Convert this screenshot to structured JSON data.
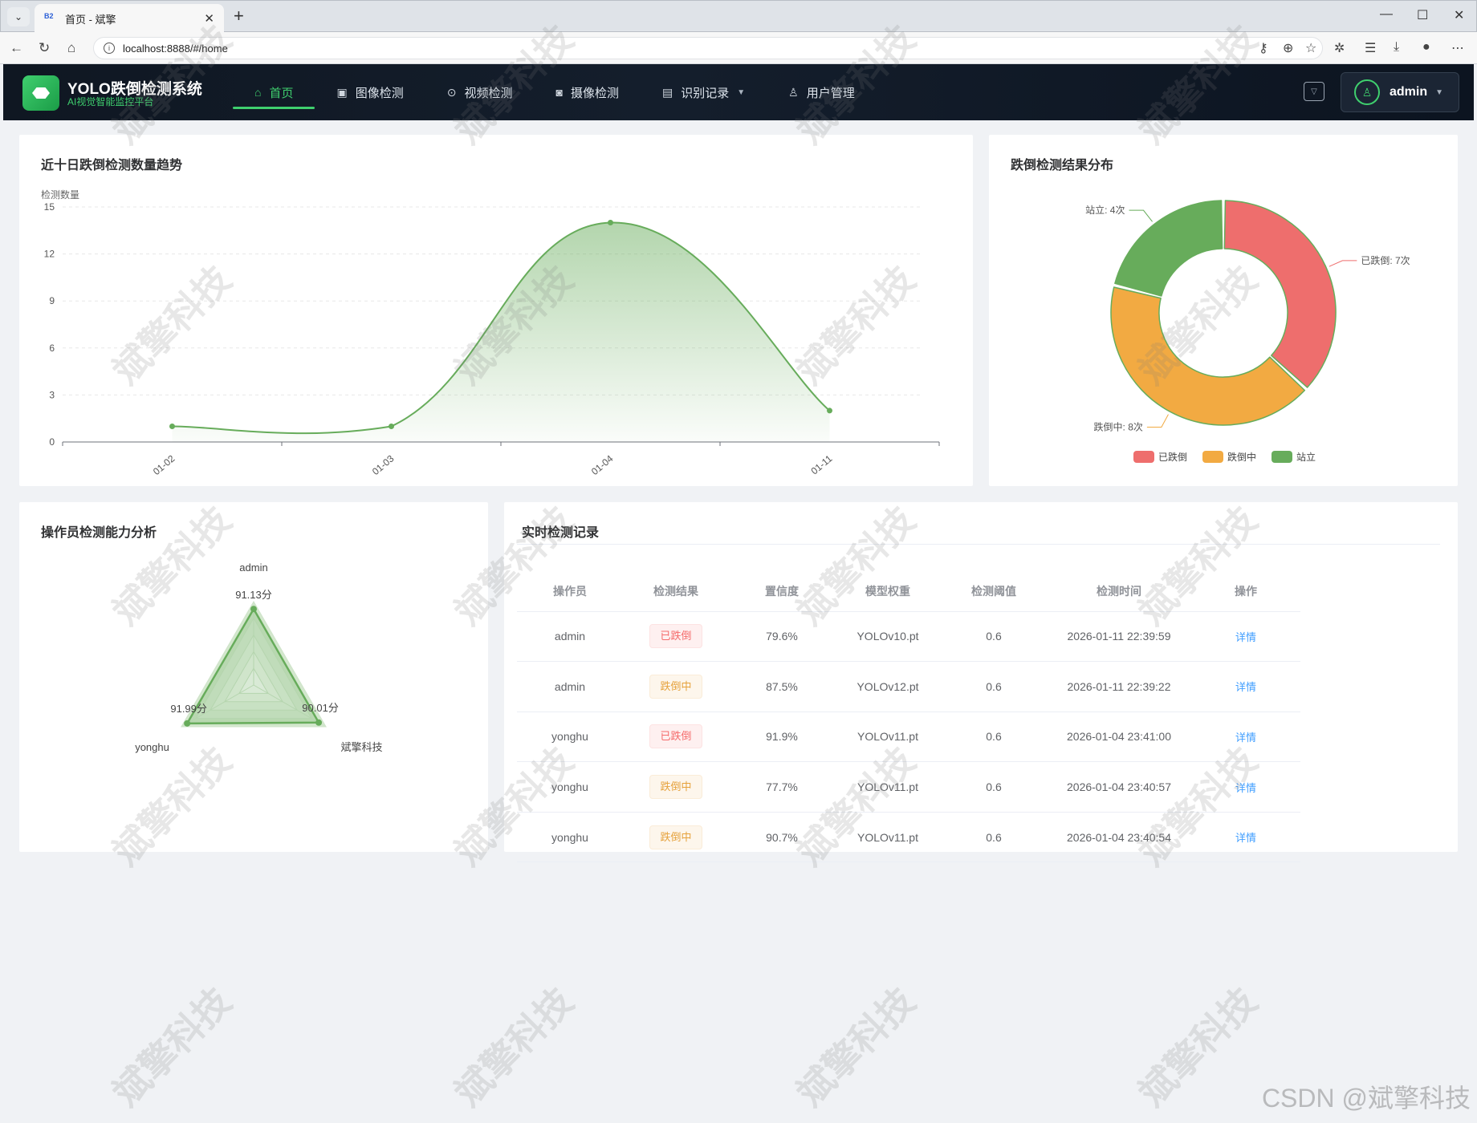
{
  "browser": {
    "tab_title": "首页 - 斌擎",
    "favicon_text": "B2",
    "url": "localhost:8888/#/home"
  },
  "app": {
    "title": "YOLO跌倒检测系统",
    "subtitle": "AI视觉智能监控平台",
    "accent": "#3fcf6e",
    "nav": [
      {
        "label": "首页",
        "icon": "home-icon",
        "active": true
      },
      {
        "label": "图像检测",
        "icon": "image-icon"
      },
      {
        "label": "视频检测",
        "icon": "play-icon"
      },
      {
        "label": "摄像检测",
        "icon": "camera-icon"
      },
      {
        "label": "识别记录",
        "icon": "document-icon",
        "has_dropdown": true
      },
      {
        "label": "用户管理",
        "icon": "user-icon"
      }
    ],
    "user": "admin"
  },
  "trend": {
    "title": "近十日跌倒检测数量趋势",
    "ylabel": "检测数量"
  },
  "pie": {
    "title": "跌倒检测结果分布"
  },
  "radar": {
    "title": "操作员检测能力分析"
  },
  "records": {
    "title": "实时检测记录",
    "columns": [
      "操作员",
      "检测结果",
      "置信度",
      "模型权重",
      "检测阈值",
      "检测时间",
      "操作"
    ],
    "rows": [
      {
        "operator": "admin",
        "result": "已跌倒",
        "kind": "fallen",
        "confidence": "79.6%",
        "weights": "YOLOv10.pt",
        "threshold": "0.6",
        "time": "2026-01-11 22:39:59",
        "action": "详情"
      },
      {
        "operator": "admin",
        "result": "跌倒中",
        "kind": "falling",
        "confidence": "87.5%",
        "weights": "YOLOv12.pt",
        "threshold": "0.6",
        "time": "2026-01-11 22:39:22",
        "action": "详情"
      },
      {
        "operator": "yonghu",
        "result": "已跌倒",
        "kind": "fallen",
        "confidence": "91.9%",
        "weights": "YOLOv11.pt",
        "threshold": "0.6",
        "time": "2026-01-04 23:41:00",
        "action": "详情"
      },
      {
        "operator": "yonghu",
        "result": "跌倒中",
        "kind": "falling",
        "confidence": "77.7%",
        "weights": "YOLOv11.pt",
        "threshold": "0.6",
        "time": "2026-01-04 23:40:57",
        "action": "详情"
      },
      {
        "operator": "yonghu",
        "result": "跌倒中",
        "kind": "falling",
        "confidence": "90.7%",
        "weights": "YOLOv11.pt",
        "threshold": "0.6",
        "time": "2026-01-04 23:40:54",
        "action": "详情"
      }
    ]
  },
  "watermark": "斌擎科技",
  "footer_mark": "CSDN @斌擎科技",
  "chart_data": [
    {
      "type": "area",
      "ylabel": "检测数量",
      "categories": [
        "01-02",
        "01-03",
        "01-04",
        "01-11"
      ],
      "values": [
        1,
        1,
        14,
        2
      ],
      "ylim": [
        0,
        15
      ],
      "yticks": [
        0,
        3,
        6,
        9,
        12,
        15
      ],
      "grid": true,
      "color": "#67ac5b"
    },
    {
      "type": "pie",
      "labels": [
        "已跌倒",
        "跌倒中",
        "站立"
      ],
      "values": [
        7,
        8,
        4
      ],
      "slice_labels": [
        "已跌倒: 7次",
        "跌倒中: 8次",
        "站立: 4次"
      ],
      "colors": [
        "#ee6e6d",
        "#f2aa42",
        "#67ac5b"
      ],
      "legend": "bottom"
    },
    {
      "type": "radar",
      "indicators": [
        "admin",
        "斌擎科技",
        "yonghu"
      ],
      "values": [
        91.13,
        90.01,
        91.99
      ],
      "value_labels": [
        "91.13分",
        "90.01分",
        "91.99分"
      ],
      "color": "#67ac5b"
    }
  ]
}
